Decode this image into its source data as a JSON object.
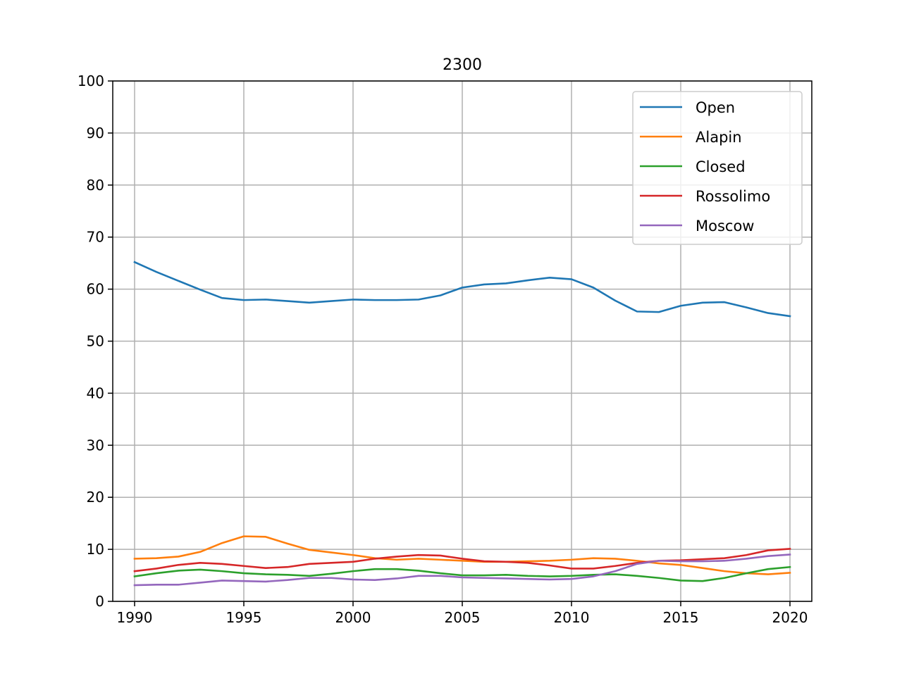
{
  "chart_data": {
    "type": "line",
    "title": "2300",
    "xlabel": "",
    "ylabel": "",
    "xlim": [
      1989,
      2021
    ],
    "ylim": [
      0,
      100
    ],
    "xticks": [
      1990,
      1995,
      2000,
      2005,
      2010,
      2015,
      2020
    ],
    "yticks": [
      0,
      10,
      20,
      30,
      40,
      50,
      60,
      70,
      80,
      90,
      100
    ],
    "grid": true,
    "legend_position": "top-right",
    "x": [
      1990,
      1991,
      1992,
      1993,
      1994,
      1995,
      1996,
      1997,
      1998,
      1999,
      2000,
      2001,
      2002,
      2003,
      2004,
      2005,
      2006,
      2007,
      2008,
      2009,
      2010,
      2011,
      2012,
      2013,
      2014,
      2015,
      2016,
      2017,
      2018,
      2019,
      2020
    ],
    "series": [
      {
        "name": "Open",
        "color": "#1f77b4",
        "values": [
          65.2,
          63.3,
          61.6,
          59.9,
          58.3,
          57.9,
          58.0,
          57.7,
          57.4,
          57.7,
          58.0,
          57.9,
          57.9,
          58.0,
          58.8,
          60.3,
          60.9,
          61.1,
          61.7,
          62.2,
          61.9,
          60.3,
          57.8,
          55.7,
          55.6,
          56.8,
          57.4,
          57.5,
          56.5,
          55.4,
          54.8
        ]
      },
      {
        "name": "Alapin",
        "color": "#ff7f0e",
        "values": [
          8.2,
          8.3,
          8.6,
          9.5,
          11.2,
          12.5,
          12.4,
          11.1,
          9.9,
          9.4,
          8.9,
          8.3,
          8.0,
          8.2,
          8.0,
          7.8,
          7.6,
          7.6,
          7.7,
          7.8,
          8.0,
          8.3,
          8.2,
          7.8,
          7.3,
          7.0,
          6.4,
          5.8,
          5.4,
          5.2,
          5.5
        ]
      },
      {
        "name": "Closed",
        "color": "#2ca02c",
        "values": [
          4.8,
          5.4,
          5.9,
          6.1,
          5.8,
          5.4,
          5.2,
          5.1,
          4.9,
          5.3,
          5.8,
          6.2,
          6.2,
          5.9,
          5.4,
          5.0,
          5.0,
          5.1,
          4.9,
          4.8,
          4.9,
          5.1,
          5.2,
          4.9,
          4.5,
          4.0,
          3.9,
          4.5,
          5.4,
          6.2,
          6.6
        ]
      },
      {
        "name": "Rossolimo",
        "color": "#d62728",
        "values": [
          5.8,
          6.3,
          7.0,
          7.4,
          7.2,
          6.8,
          6.4,
          6.6,
          7.2,
          7.4,
          7.6,
          8.2,
          8.6,
          8.9,
          8.8,
          8.2,
          7.7,
          7.6,
          7.4,
          6.9,
          6.3,
          6.3,
          6.8,
          7.4,
          7.8,
          7.9,
          8.1,
          8.3,
          8.9,
          9.8,
          10.1
        ]
      },
      {
        "name": "Moscow",
        "color": "#9467bd",
        "values": [
          3.1,
          3.2,
          3.2,
          3.6,
          4.0,
          3.9,
          3.8,
          4.1,
          4.5,
          4.5,
          4.2,
          4.1,
          4.4,
          4.9,
          4.9,
          4.6,
          4.5,
          4.4,
          4.3,
          4.2,
          4.3,
          4.8,
          5.8,
          7.2,
          7.8,
          7.7,
          7.7,
          7.8,
          8.2,
          8.7,
          9.0
        ]
      }
    ]
  }
}
